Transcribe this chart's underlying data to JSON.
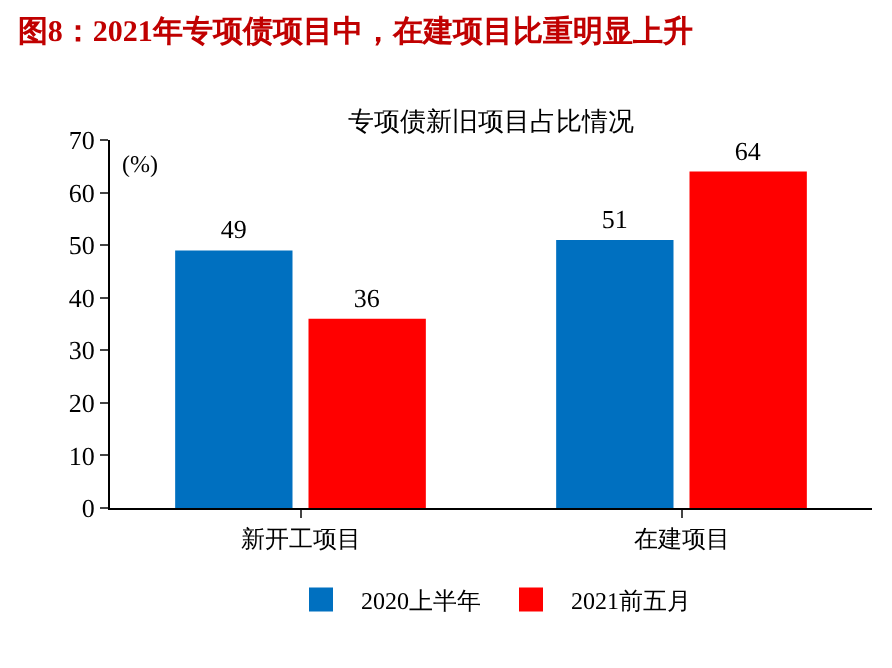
{
  "chart_data": {
    "type": "bar",
    "title": "图8：2021年专项债项目中，在建项目比重明显上升",
    "subtitle": "专项债新旧项目占比情况",
    "ylabel": "(%)",
    "categories": [
      "新开工项目",
      "在建项目"
    ],
    "series": [
      {
        "name": "2020上半年",
        "color": "#0070c0",
        "values": [
          49,
          51
        ]
      },
      {
        "name": "2021前五月",
        "color": "#ff0000",
        "values": [
          36,
          64
        ]
      }
    ],
    "ylim": [
      0,
      70
    ],
    "yticks": [
      0,
      10,
      20,
      30,
      40,
      50,
      60,
      70
    ],
    "grid": false,
    "legend": "bottom",
    "data_labels": true
  }
}
